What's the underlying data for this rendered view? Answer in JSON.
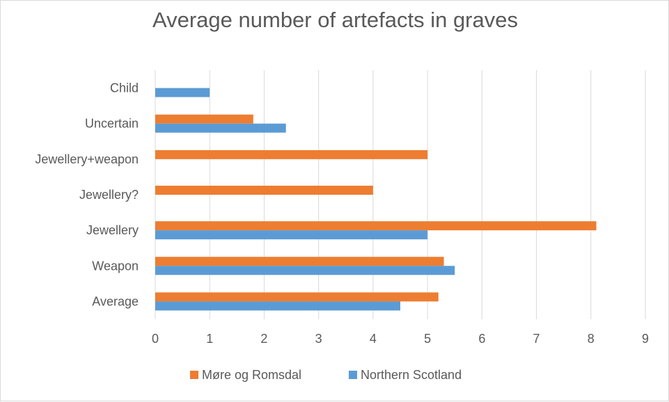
{
  "chart_data": {
    "type": "bar",
    "orientation": "horizontal",
    "title": "Average number of artefacts in graves",
    "categories": [
      "Child",
      "Uncertain",
      "Jewellery+weapon",
      "Jewellery?",
      "Jewellery",
      "Weapon",
      "Average"
    ],
    "series": [
      {
        "name": "Møre og Romsdal",
        "color": "#ed7d31",
        "values": [
          null,
          1.8,
          5,
          4,
          8.1,
          5.3,
          5.2
        ]
      },
      {
        "name": "Northern Scotland",
        "color": "#5b9bd5",
        "values": [
          1,
          2.4,
          null,
          null,
          5,
          5.5,
          4.5
        ]
      }
    ],
    "xlim": [
      0,
      9
    ],
    "xticks": [
      "0",
      "1",
      "2",
      "3",
      "4",
      "5",
      "6",
      "7",
      "8",
      "9"
    ],
    "grid": "vertical",
    "legend": "bottom"
  }
}
